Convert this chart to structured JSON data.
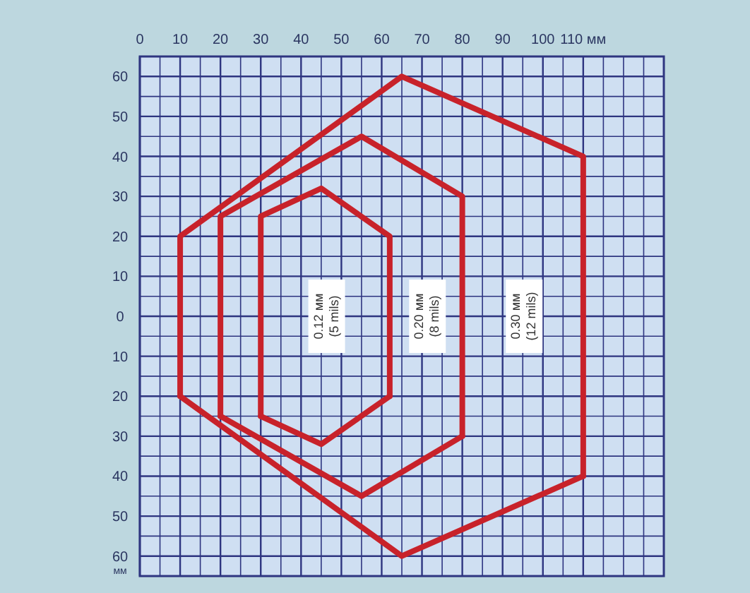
{
  "chart_data": {
    "type": "line",
    "xlim": [
      0,
      130
    ],
    "ylim": [
      -65,
      65
    ],
    "xticks": [
      0,
      {
        "value": 5,
        "label": null
      },
      10,
      {
        "value": 15,
        "label": null
      },
      20,
      {
        "value": 25,
        "label": null
      },
      30,
      {
        "value": 35,
        "label": null
      },
      40,
      {
        "value": 45,
        "label": null
      },
      50,
      {
        "value": 55,
        "label": null
      },
      60,
      {
        "value": 65,
        "label": null
      },
      70,
      {
        "value": 75,
        "label": null
      },
      80,
      {
        "value": 85,
        "label": null
      },
      90,
      {
        "value": 95,
        "label": null
      },
      100,
      {
        "value": 105,
        "label": null
      },
      {
        "value": 110,
        "label": "110 мм"
      },
      {
        "value": 115,
        "label": null
      },
      {
        "value": 120,
        "label": null
      },
      {
        "value": 125,
        "label": null
      }
    ],
    "yticks": [
      {
        "value": 60,
        "label": "60"
      },
      {
        "value": 55,
        "label": null
      },
      {
        "value": 50,
        "label": "50"
      },
      {
        "value": 45,
        "label": null
      },
      {
        "value": 40,
        "label": "40"
      },
      {
        "value": 35,
        "label": null
      },
      {
        "value": 30,
        "label": "30"
      },
      {
        "value": 25,
        "label": null
      },
      {
        "value": 20,
        "label": "20"
      },
      {
        "value": 15,
        "label": null
      },
      {
        "value": 10,
        "label": "10"
      },
      {
        "value": 5,
        "label": null
      },
      0,
      {
        "value": -5,
        "label": null
      },
      {
        "value": -10,
        "label": "10"
      },
      {
        "value": -15,
        "label": null
      },
      {
        "value": -20,
        "label": "20"
      },
      {
        "value": -25,
        "label": null
      },
      {
        "value": -30,
        "label": "30"
      },
      {
        "value": -35,
        "label": null
      },
      {
        "value": -40,
        "label": "40"
      },
      {
        "value": -45,
        "label": null
      },
      {
        "value": -50,
        "label": "50"
      },
      {
        "value": -55,
        "label": null
      },
      {
        "value": -60,
        "label": "60$_{мм}$"
      }
    ],
    "grid": true,
    "marker": "none",
    "line_style": "solid",
    "series": [
      {
        "color": "#c8222a",
        "x": [
          10,
          10,
          65,
          110,
          110
        ],
        "values": [
          -20,
          20,
          60,
          40,
          -40
        ]
      },
      {
        "color": "#c8222a",
        "x": [
          10,
          65,
          110
        ],
        "values": [
          -20,
          -60,
          -40
        ]
      },
      {
        "color": "#c8222a",
        "x": [
          20,
          20,
          55,
          80,
          80
        ],
        "values": [
          -25,
          25,
          45,
          30,
          -30
        ]
      },
      {
        "color": "#c8222a",
        "x": [
          20,
          55,
          80
        ],
        "values": [
          -25,
          -45,
          -30
        ]
      },
      {
        "color": "#c8222a",
        "x": [
          30,
          30,
          45,
          62,
          62
        ],
        "values": [
          -25,
          25,
          32,
          20,
          -20
        ]
      },
      {
        "color": "#c8222a",
        "x": [
          30,
          45,
          62
        ],
        "values": [
          -25,
          -32,
          -20
        ]
      }
    ],
    "annotations": [
      "0.12 мм (5 mils)",
      "0.20 мм (8 mils)",
      "0.30 мм (12 mils)"
    ]
  }
}
